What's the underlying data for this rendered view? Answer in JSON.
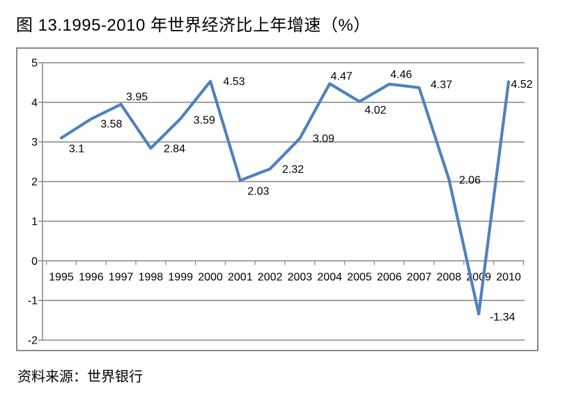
{
  "title": "图 13.1995-2010 年世界经济比上年增速（%）",
  "source": "资料来源：世界银行",
  "chart_data": {
    "type": "line",
    "title": "图 13.1995-2010 年世界经济比上年增速（%）",
    "categories": [
      "1995",
      "1996",
      "1997",
      "1998",
      "1999",
      "2000",
      "2001",
      "2002",
      "2003",
      "2004",
      "2005",
      "2006",
      "2007",
      "2008",
      "2009",
      "2010"
    ],
    "values": [
      3.1,
      3.58,
      3.95,
      2.84,
      3.59,
      4.53,
      2.03,
      2.32,
      3.09,
      4.47,
      4.02,
      4.46,
      4.37,
      2.06,
      -1.34,
      4.52
    ],
    "data_labels": [
      "3.1",
      "3.58",
      "3.95",
      "2.84",
      "3.59",
      "4.53",
      "2.03",
      "2.32",
      "3.09",
      "4.47",
      "4.02",
      "4.46",
      "4.37",
      "2.06",
      "-1.34",
      "4.52"
    ],
    "xlabel": "",
    "ylabel": "",
    "ylim": [
      -2,
      5
    ],
    "yticks": [
      5,
      4,
      3,
      2,
      1,
      0,
      -1,
      -2
    ],
    "grid": true,
    "legend": "none",
    "line_color": "#4F81BD",
    "gridline_color": "#8C8C8C",
    "label_color": "#000000",
    "source": "资料来源：世界银行"
  }
}
